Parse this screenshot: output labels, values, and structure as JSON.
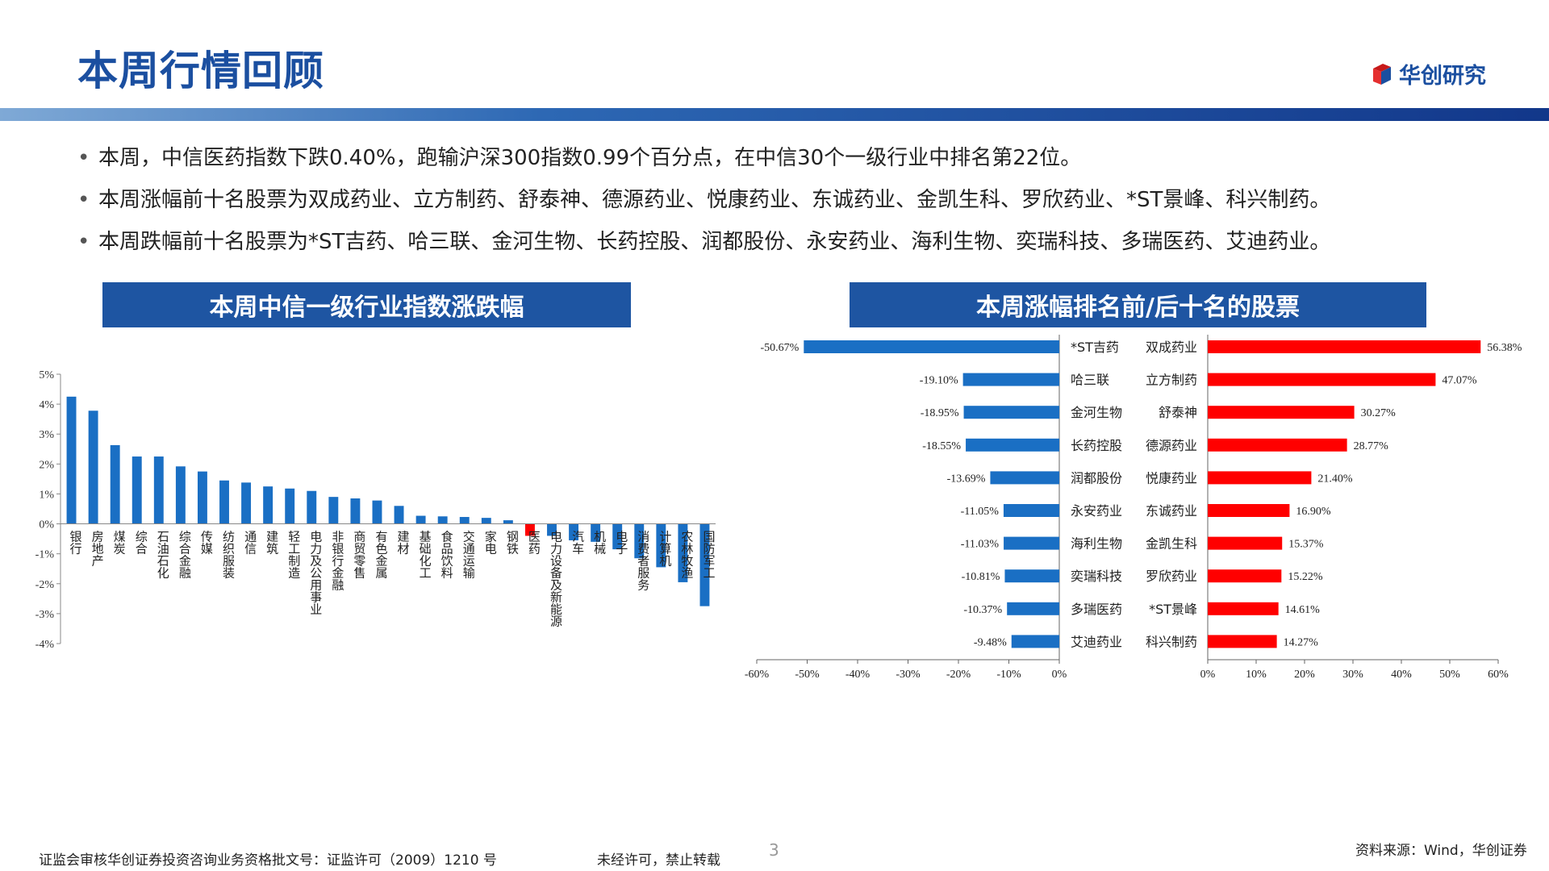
{
  "header": {
    "title": "本周行情回顾",
    "logo_text": "华创研究"
  },
  "bullets": [
    "本周，中信医药指数下跌0.40%，跑输沪深300指数0.99个百分点，在中信30个一级行业中排名第22位。",
    "本周涨幅前十名股票为双成药业、立方制药、舒泰神、德源药业、悦康药业、东诚药业、金凯生科、罗欣药业、*ST景峰、科兴制药。",
    "本周跌幅前十名股票为*ST吉药、哈三联、金河生物、长药控股、润都股份、永安药业、海利生物、奕瑞科技、多瑞医药、艾迪药业。"
  ],
  "colors": {
    "brand": "#1b4fa0",
    "bar_blue": "#1a6fc4",
    "bar_highlight": "#ff0000",
    "bar_red": "#ff0000"
  },
  "chart_data": [
    {
      "type": "bar",
      "title": "本周中信一级行业指数涨跌幅",
      "categories": [
        "银行",
        "房地产",
        "煤炭",
        "综合",
        "石油石化",
        "综合金融",
        "传媒",
        "纺织服装",
        "通信",
        "建筑",
        "轻工制造",
        "电力及公用事业",
        "非银行金融",
        "商贸零售",
        "有色金属",
        "建材",
        "基础化工",
        "食品饮料",
        "交通运输",
        "家电",
        "钢铁",
        "医药",
        "电力设备及新能源",
        "汽车",
        "机械",
        "电子",
        "消费者服务",
        "计算机",
        "农林牧渔",
        "国防军工"
      ],
      "values": [
        4.25,
        3.78,
        2.63,
        2.25,
        2.25,
        1.92,
        1.75,
        1.45,
        1.38,
        1.25,
        1.18,
        1.1,
        0.9,
        0.85,
        0.78,
        0.6,
        0.27,
        0.25,
        0.23,
        0.2,
        0.12,
        -0.4,
        -0.4,
        -0.55,
        -0.6,
        -0.85,
        -1.15,
        -1.45,
        -1.95,
        -2.75
      ],
      "highlight": "医药",
      "yticks": [
        "5%",
        "4%",
        "3%",
        "2%",
        "1%",
        "0%",
        "-1%",
        "-2%",
        "-3%",
        "-4%"
      ],
      "ylim": [
        -4,
        5
      ]
    },
    {
      "type": "bar",
      "title": "本周涨幅排名前/后十名的股票",
      "losers": [
        {
          "name": "*ST吉药",
          "value": -50.67,
          "label": "-50.67%"
        },
        {
          "name": "哈三联",
          "value": -19.1,
          "label": "-19.10%"
        },
        {
          "name": "金河生物",
          "value": -18.95,
          "label": "-18.95%"
        },
        {
          "name": "长药控股",
          "value": -18.55,
          "label": "-18.55%"
        },
        {
          "name": "润都股份",
          "value": -13.69,
          "label": "-13.69%"
        },
        {
          "name": "永安药业",
          "value": -11.05,
          "label": "-11.05%"
        },
        {
          "name": "海利生物",
          "value": -11.03,
          "label": "-11.03%"
        },
        {
          "name": "奕瑞科技",
          "value": -10.81,
          "label": "-10.81%"
        },
        {
          "name": "多瑞医药",
          "value": -10.37,
          "label": "-10.37%"
        },
        {
          "name": "艾迪药业",
          "value": -9.48,
          "label": "-9.48%"
        }
      ],
      "gainers": [
        {
          "name": "双成药业",
          "value": 56.38,
          "label": "56.38%"
        },
        {
          "name": "立方制药",
          "value": 47.07,
          "label": "47.07%"
        },
        {
          "name": "舒泰神",
          "value": 30.27,
          "label": "30.27%"
        },
        {
          "name": "德源药业",
          "value": 28.77,
          "label": "28.77%"
        },
        {
          "name": "悦康药业",
          "value": 21.4,
          "label": "21.40%"
        },
        {
          "name": "东诚药业",
          "value": 16.9,
          "label": "16.90%"
        },
        {
          "name": "金凯生科",
          "value": 15.37,
          "label": "15.37%"
        },
        {
          "name": "罗欣药业",
          "value": 15.22,
          "label": "15.22%"
        },
        {
          "name": "*ST景峰",
          "value": 14.61,
          "label": "14.61%"
        },
        {
          "name": "科兴制药",
          "value": 14.27,
          "label": "14.27%"
        }
      ],
      "left_ticks": [
        "-60%",
        "-50%",
        "-40%",
        "-30%",
        "-20%",
        "-10%",
        "0%"
      ],
      "right_ticks": [
        "0%",
        "10%",
        "20%",
        "30%",
        "40%",
        "50%",
        "60%"
      ],
      "left_xlim": [
        -60,
        0
      ],
      "right_xlim": [
        0,
        60
      ]
    }
  ],
  "footer": {
    "license": "证监会审核华创证券投资咨询业务资格批文号：证监许可（2009）1210 号",
    "notice": "未经许可，禁止转载",
    "page": "3",
    "source": "资料来源：Wind，华创证券"
  }
}
